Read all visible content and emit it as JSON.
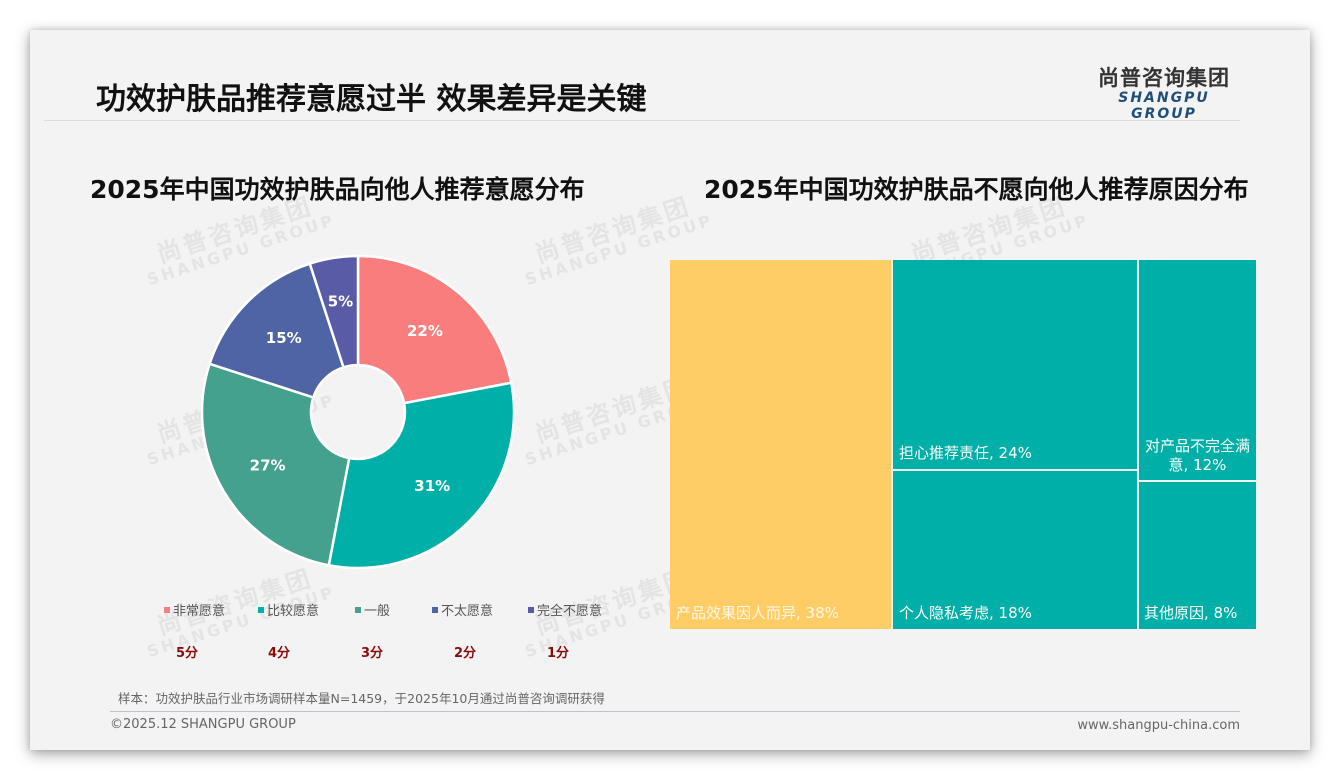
{
  "header": {
    "title": "功效护肤品推荐意愿过半 效果差异是关键",
    "logo_cn": "尚普咨询集团",
    "logo_en": "SHANGPU GROUP"
  },
  "watermark": {
    "cn": "尚普咨询集团",
    "en": "SHANGPU GROUP"
  },
  "left_chart": {
    "title": "2025年中国功效护肤品向他人推荐意愿分布",
    "legend": [
      {
        "label": "非常愿意",
        "color": "#fa7d7d",
        "score": "5分"
      },
      {
        "label": "比较愿意",
        "color": "#00b0a8",
        "score": "4分"
      },
      {
        "label": "一般",
        "color": "#43a18e",
        "score": "3分"
      },
      {
        "label": "不太愿意",
        "color": "#4f64a4",
        "score": "2分"
      },
      {
        "label": "完全不愿意",
        "color": "#5a5ba6",
        "score": "1分"
      }
    ]
  },
  "right_chart": {
    "title": "2025年中国功效护肤品不愿向他人推荐原因分布"
  },
  "chart_data": [
    {
      "type": "pie",
      "subtype": "donut",
      "title": "2025年中国功效护肤品向他人推荐意愿分布",
      "categories": [
        "非常愿意",
        "比较愿意",
        "一般",
        "不太愿意",
        "完全不愿意"
      ],
      "values": [
        22,
        31,
        27,
        15,
        5
      ],
      "labels": [
        "22%",
        "31%",
        "27%",
        "15%",
        "5%"
      ],
      "scores": [
        "5分",
        "4分",
        "3分",
        "2分",
        "1分"
      ],
      "colors": [
        "#fa7d7d",
        "#00b0a8",
        "#43a18e",
        "#4f64a4",
        "#5a5ba6"
      ],
      "legend_position": "bottom"
    },
    {
      "type": "treemap",
      "title": "2025年中国功效护肤品不愿向他人推荐原因分布",
      "categories": [
        "产品效果因人而异",
        "担心推荐责任",
        "个人隐私考虑",
        "对产品不完全满意",
        "其他原因"
      ],
      "values": [
        38,
        24,
        18,
        12,
        8
      ],
      "labels": [
        "产品效果因人而异, 38%",
        "担心推荐责任, 24%",
        "个人隐私考虑, 18%",
        "对产品不完全满意, 12%",
        "其他原因, 8%"
      ],
      "colors": [
        "#ffcd66",
        "#00b0a8",
        "#00b0a8",
        "#00b0a8",
        "#00b0a8"
      ]
    }
  ],
  "footer": {
    "source": "样本：功效护肤品行业市场调研样本量N=1459，于2025年10月通过尚普咨询调研获得",
    "copyright": "©2025.12 SHANGPU GROUP",
    "website": "www.shangpu-china.com"
  }
}
